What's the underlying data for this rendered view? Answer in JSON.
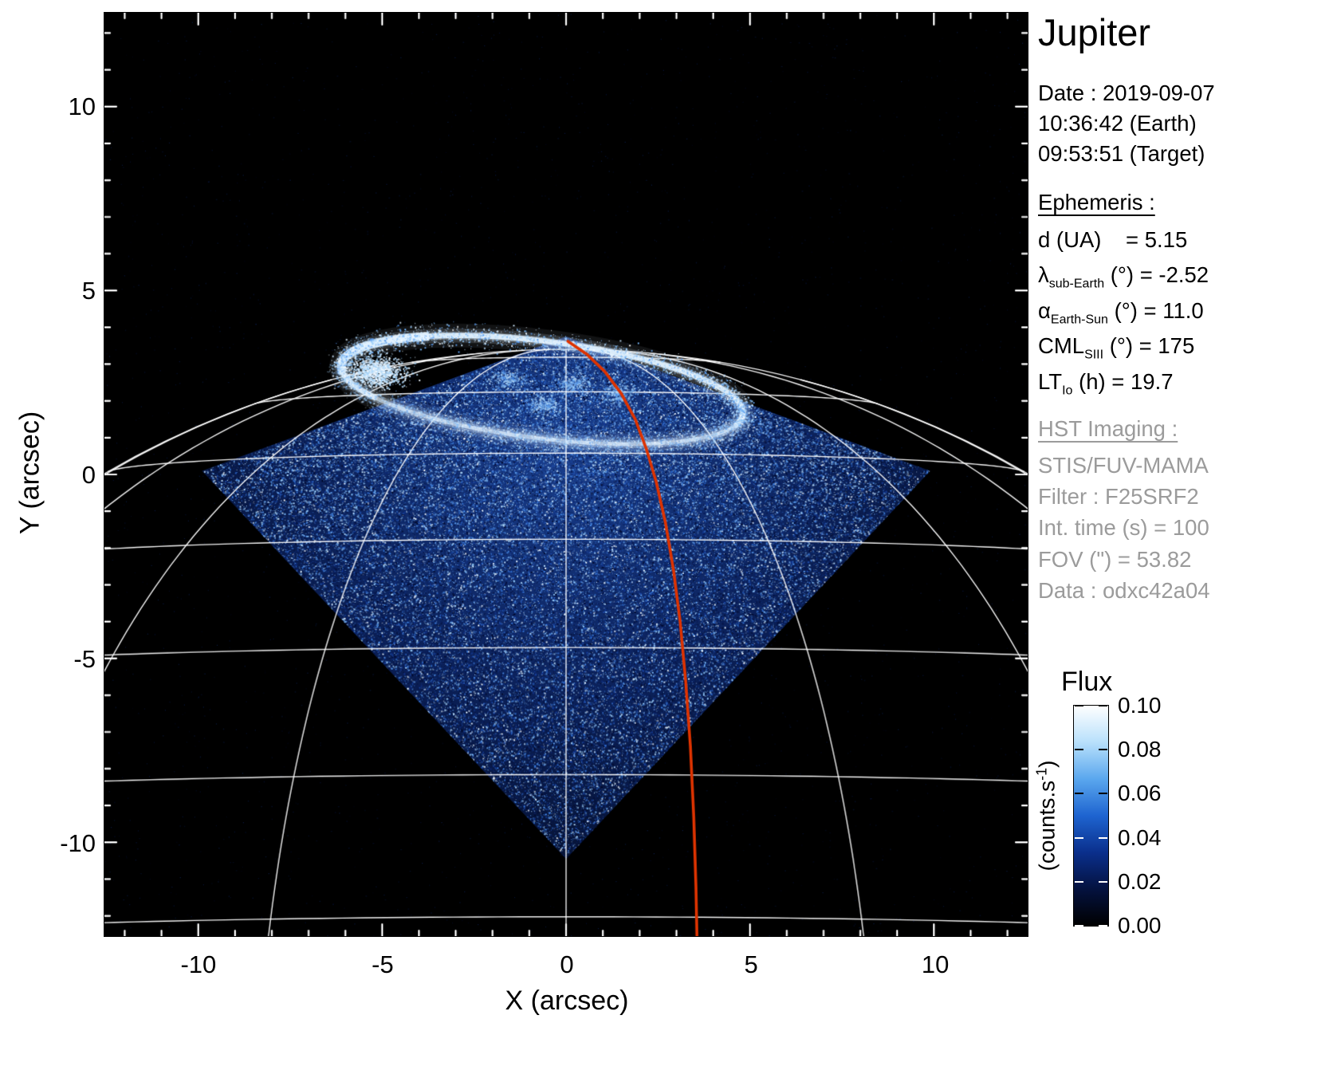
{
  "panel": {
    "title": "Jupiter",
    "date_line": "Date : 2019-09-07",
    "time_earth": "10:36:42 (Earth)",
    "time_target": "09:53:51 (Target)",
    "ephemeris_heading": "Ephemeris :",
    "ephemeris": [
      {
        "sym": "d",
        "sub": "",
        "rest": " (UA)    = 5.15"
      },
      {
        "sym": "λ",
        "sub": "sub-Earth",
        "rest": " (°) = -2.52"
      },
      {
        "sym": "α",
        "sub": "Earth-Sun",
        "rest": " (°) = 11.0"
      },
      {
        "sym": "CML",
        "sub": "SIII",
        "rest": " (°) = 175"
      },
      {
        "sym": "LT",
        "sub": "Io",
        "rest": " (h) = 19.7"
      }
    ],
    "hst_heading": "HST Imaging :",
    "hst_lines": [
      "STIS/FUV-MAMA",
      "Filter : F25SRF2",
      "Int. time (s) = 100",
      "FOV (\") = 53.82",
      "Data : odxc42a04"
    ]
  },
  "chart_data": {
    "type": "heatmap",
    "title": "Jupiter",
    "xlabel": "X (arcsec)",
    "ylabel": "Y (arcsec)",
    "xlim": [
      -12.55,
      12.55
    ],
    "ylim": [
      -12.55,
      12.55
    ],
    "xticks": [
      -10,
      -5,
      0,
      5,
      10
    ],
    "yticks": [
      10,
      5,
      0,
      -5,
      -10
    ],
    "minor_tick_step_arcsec": 1,
    "background_color": "#000000",
    "grid_color": "#ffffff",
    "detector_footprint": {
      "shape": "rotated-square",
      "vertices_arcsec": [
        [
          0,
          3.75
        ],
        [
          9.9,
          0.1
        ],
        [
          0,
          -10.45
        ],
        [
          -9.9,
          0.1
        ]
      ],
      "noise_base_colors": [
        "#1a3f8e",
        "#0b2058",
        "#061233"
      ],
      "speckle_count": 70000
    },
    "planet_grid": {
      "center_arcsec": [
        0,
        -21.6
      ],
      "radius_arcsec": 25,
      "sub_earth_latitude_deg": -2.52,
      "latitude_lines_deg": [
        80,
        70,
        60,
        50,
        40,
        30,
        20,
        10
      ],
      "longitude_lines_deg": [
        -80,
        -60,
        -40,
        -20,
        0,
        20,
        40,
        60,
        80
      ]
    },
    "aurora_oval": {
      "center_arcsec": [
        -0.65,
        2.3
      ],
      "rx_arcsec": 5.5,
      "ry_arcsec": 1.32,
      "tilt_deg": -7,
      "color": "#ffffff",
      "dawn_spot_arcsec": [
        -5.2,
        2.8
      ]
    },
    "io_track": {
      "color": "#dd3300",
      "points_arcsec": [
        [
          0.05,
          3.62
        ],
        [
          0.55,
          3.28
        ],
        [
          1.05,
          2.8
        ],
        [
          1.5,
          2.2
        ],
        [
          1.88,
          1.5
        ],
        [
          2.18,
          0.7
        ],
        [
          2.45,
          -0.2
        ],
        [
          2.7,
          -1.3
        ],
        [
          2.92,
          -2.6
        ],
        [
          3.1,
          -4.0
        ],
        [
          3.25,
          -5.6
        ],
        [
          3.38,
          -7.4
        ],
        [
          3.47,
          -9.3
        ],
        [
          3.53,
          -11.2
        ],
        [
          3.56,
          -12.7
        ]
      ]
    },
    "colorbar": {
      "title": "Flux",
      "unit_prefix": "(counts.s",
      "unit_sup": "-1",
      "unit_suffix": ")",
      "min": 0.0,
      "max": 0.1,
      "tick_labels": [
        "0.10",
        "0.08",
        "0.06",
        "0.04",
        "0.02",
        "0.00"
      ],
      "gradient_bottom_to_top": [
        "#000000",
        "#04123f",
        "#0a2f8c",
        "#1e64d0",
        "#5aa7ee",
        "#b8e0fb",
        "#ffffff"
      ]
    }
  }
}
